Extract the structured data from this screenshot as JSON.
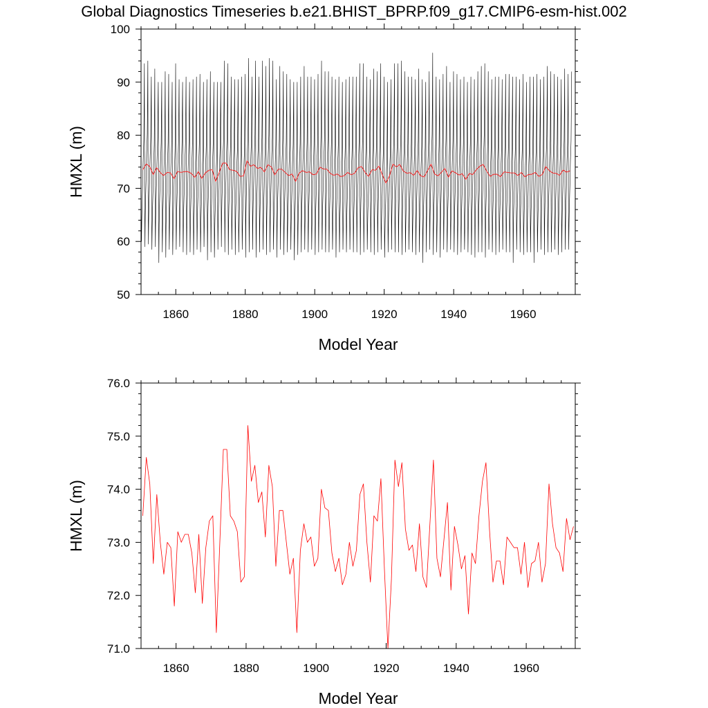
{
  "figure_title": "Global Diagnostics Timeseries b.e21.BHIST_BPRP.f09_g17.CMIP6-esm-hist.002",
  "colors": {
    "monthly": "#000000",
    "annual": "#ff0000",
    "frame": "#000000",
    "background": "#ffffff"
  },
  "annual_mean": {
    "start_year": 1850,
    "values": [
      73.5,
      74.6,
      74.1,
      72.6,
      73.9,
      73.0,
      72.4,
      73.0,
      72.9,
      71.8,
      73.2,
      73.0,
      73.15,
      73.15,
      72.8,
      72.05,
      73.15,
      71.85,
      72.9,
      73.4,
      73.5,
      71.3,
      73.0,
      74.75,
      74.75,
      73.5,
      73.4,
      73.2,
      72.25,
      72.35,
      75.2,
      74.15,
      74.45,
      73.75,
      73.95,
      73.1,
      74.45,
      74.05,
      72.55,
      73.6,
      73.6,
      73.0,
      72.4,
      72.7,
      71.3,
      72.85,
      73.35,
      73.0,
      73.1,
      72.55,
      72.7,
      74.0,
      73.65,
      73.6,
      72.8,
      72.45,
      72.7,
      72.2,
      72.4,
      73.0,
      72.55,
      72.85,
      73.9,
      74.1,
      73.0,
      72.25,
      73.5,
      73.4,
      74.2,
      72.5,
      71.0,
      72.3,
      74.55,
      74.05,
      74.5,
      73.25,
      72.85,
      72.95,
      72.45,
      73.35,
      72.35,
      72.15,
      73.35,
      74.55,
      72.7,
      72.35,
      73.05,
      73.75,
      72.1,
      73.3,
      72.95,
      72.5,
      72.75,
      71.65,
      72.8,
      72.6,
      73.5,
      74.15,
      74.5,
      73.25,
      72.25,
      72.65,
      72.65,
      72.2,
      73.1,
      73.0,
      72.9,
      72.9,
      72.4,
      73.0,
      72.15,
      72.6,
      72.65,
      73.0,
      72.25,
      72.6,
      74.1,
      73.35,
      72.9,
      72.8,
      72.45,
      73.45,
      73.05,
      73.3
    ]
  },
  "chart_data": [
    {
      "type": "line",
      "title": "Global Diagnostics Timeseries b.e21.BHIST_BPRP.f09_g17.CMIP6-esm-hist.002",
      "xlabel": "Model Year",
      "ylabel": "HMXL (m)",
      "xlim": [
        1850,
        1975
      ],
      "ylim": [
        50,
        100
      ],
      "xticks": [
        1860,
        1880,
        1900,
        1920,
        1940,
        1960
      ],
      "xtick_labels": [
        "1860",
        "1880",
        "1900",
        "1920",
        "1940",
        "1960"
      ],
      "yticks": [
        50,
        60,
        70,
        80,
        90,
        100
      ],
      "ytick_labels": [
        "50",
        "60",
        "70",
        "80",
        "90",
        "100"
      ],
      "grid": false,
      "series": [
        {
          "kind": "monthly",
          "color": "#000000",
          "start_year": 1850,
          "annual_cycle": [
            65.5,
            59.5,
            61.5,
            64.5,
            66.5,
            68.5,
            71.5,
            73.5,
            75.0,
            77.0,
            83.0,
            90.5
          ],
          "cycle_peaks_approx": [
            93.5,
            94,
            91,
            92.5,
            90,
            90,
            92,
            91.5,
            90,
            93.5,
            90.5,
            90,
            91,
            90,
            90.5,
            91,
            91.5,
            90,
            90.5,
            92,
            90,
            90,
            90,
            94,
            93.5,
            91,
            90.5,
            90.5,
            91,
            91.5,
            94.5,
            91,
            94,
            91,
            94,
            93,
            94.5,
            94,
            90.5,
            93,
            92,
            91.5,
            90.5,
            90,
            90,
            91,
            93,
            91,
            91,
            90.5,
            91.5,
            94,
            92,
            92,
            91,
            90.5,
            91,
            90,
            90.5,
            91,
            91,
            91,
            93.5,
            93.5,
            91,
            90.5,
            92.5,
            92,
            93.5,
            91,
            90,
            90.5,
            93.5,
            93.5,
            94,
            92,
            91,
            91,
            90.5,
            92.5,
            90.5,
            90,
            92,
            95.5,
            91,
            90.5,
            91.5,
            93,
            90,
            92,
            91.5,
            90.5,
            91,
            90,
            91,
            90.5,
            92,
            93,
            93.5,
            92,
            90.5,
            91,
            91,
            90.5,
            91.5,
            91.5,
            91,
            91,
            90.5,
            91.5,
            90,
            91,
            91,
            91.5,
            90.5,
            91,
            93,
            92,
            91.5,
            91,
            90.5,
            92.5,
            91.5,
            92
          ],
          "cycle_troughs_approx": [
            60,
            59,
            59.5,
            58.5,
            59,
            56,
            58,
            57,
            58.5,
            57.5,
            58.5,
            59,
            58,
            57.5,
            58,
            57.5,
            58.5,
            58,
            59,
            56.5,
            58,
            57,
            58.5,
            59,
            58,
            57.5,
            58.5,
            57.5,
            58,
            58.5,
            57,
            58,
            58.5,
            57,
            58,
            58.5,
            57.5,
            58,
            58.5,
            57,
            58.5,
            57.5,
            58,
            58.5,
            56.5,
            57.5,
            58,
            58.5,
            58,
            58.5,
            57.5,
            58,
            58.5,
            58,
            58,
            58.5,
            57,
            58,
            58.5,
            58,
            58.5,
            58,
            58,
            57.5,
            58,
            58.5,
            58,
            57.5,
            58,
            58.5,
            57,
            58,
            58.5,
            58,
            58,
            57.5,
            58,
            58.5,
            58,
            57.5,
            58,
            56,
            58,
            58.5,
            57.5,
            58,
            57,
            58.5,
            58,
            58.5,
            58,
            57.5,
            58,
            58.5,
            58,
            57.5,
            57,
            58,
            58,
            57,
            58.5,
            58,
            57.5,
            58,
            58.5,
            58,
            58,
            56,
            58.5,
            58,
            57.5,
            58,
            58,
            56,
            58,
            58.5,
            57.5,
            58,
            58,
            58.5,
            57.5,
            58,
            58.5,
            58.5
          ]
        },
        {
          "kind": "annual",
          "color": "#ff0000"
        }
      ]
    },
    {
      "type": "line",
      "xlabel": "Model Year",
      "ylabel": "HMXL (m)",
      "xlim": [
        1850,
        1974
      ],
      "ylim": [
        71.0,
        76.0
      ],
      "xticks": [
        1860,
        1880,
        1900,
        1920,
        1940,
        1960
      ],
      "xtick_labels": [
        "1860",
        "1880",
        "1900",
        "1920",
        "1940",
        "1960"
      ],
      "yticks": [
        71.0,
        72.0,
        73.0,
        74.0,
        75.0,
        76.0
      ],
      "ytick_labels": [
        "71.0",
        "72.0",
        "73.0",
        "74.0",
        "75.0",
        "76.0"
      ],
      "grid": false,
      "series": [
        {
          "kind": "annual",
          "color": "#ff0000"
        }
      ]
    }
  ]
}
